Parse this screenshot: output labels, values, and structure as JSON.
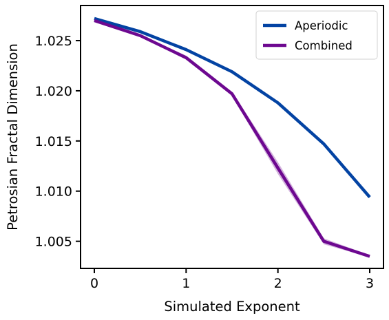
{
  "chart_data": {
    "type": "line",
    "title": "",
    "xlabel": "Simulated Exponent",
    "ylabel": "Petrosian Fractal Dimension",
    "xlim": [
      -0.15,
      3.15
    ],
    "ylim": [
      1.0023,
      1.0285
    ],
    "x_ticks": [
      0,
      1,
      2,
      3
    ],
    "x_tick_labels": [
      "0",
      "1",
      "2",
      "3"
    ],
    "y_ticks": [
      1.005,
      1.01,
      1.015,
      1.02,
      1.025
    ],
    "y_tick_labels": [
      "1.005",
      "1.010",
      "1.015",
      "1.020",
      "1.025"
    ],
    "grid": false,
    "legend_position": "top-right",
    "x": [
      0,
      0.5,
      1,
      1.5,
      2,
      2.5,
      3
    ],
    "series": [
      {
        "name": "Aperiodic",
        "color": "#0343a3",
        "values": [
          1.0272,
          1.0259,
          1.0241,
          1.0219,
          1.0188,
          1.0147,
          1.0094
        ],
        "ci_halfwidth": [
          0.0001,
          0.0001,
          0.0001,
          0.0001,
          0.0001,
          0.0001,
          0.0001
        ]
      },
      {
        "name": "Combined",
        "color": "#6d0890",
        "values": [
          1.027,
          1.0255,
          1.0233,
          1.0197,
          1.0123,
          1.005,
          1.0035
        ],
        "ci_halfwidth": [
          0.0001,
          0.0001,
          0.0002,
          0.0002,
          0.0006,
          0.0003,
          0.0001
        ]
      }
    ]
  }
}
